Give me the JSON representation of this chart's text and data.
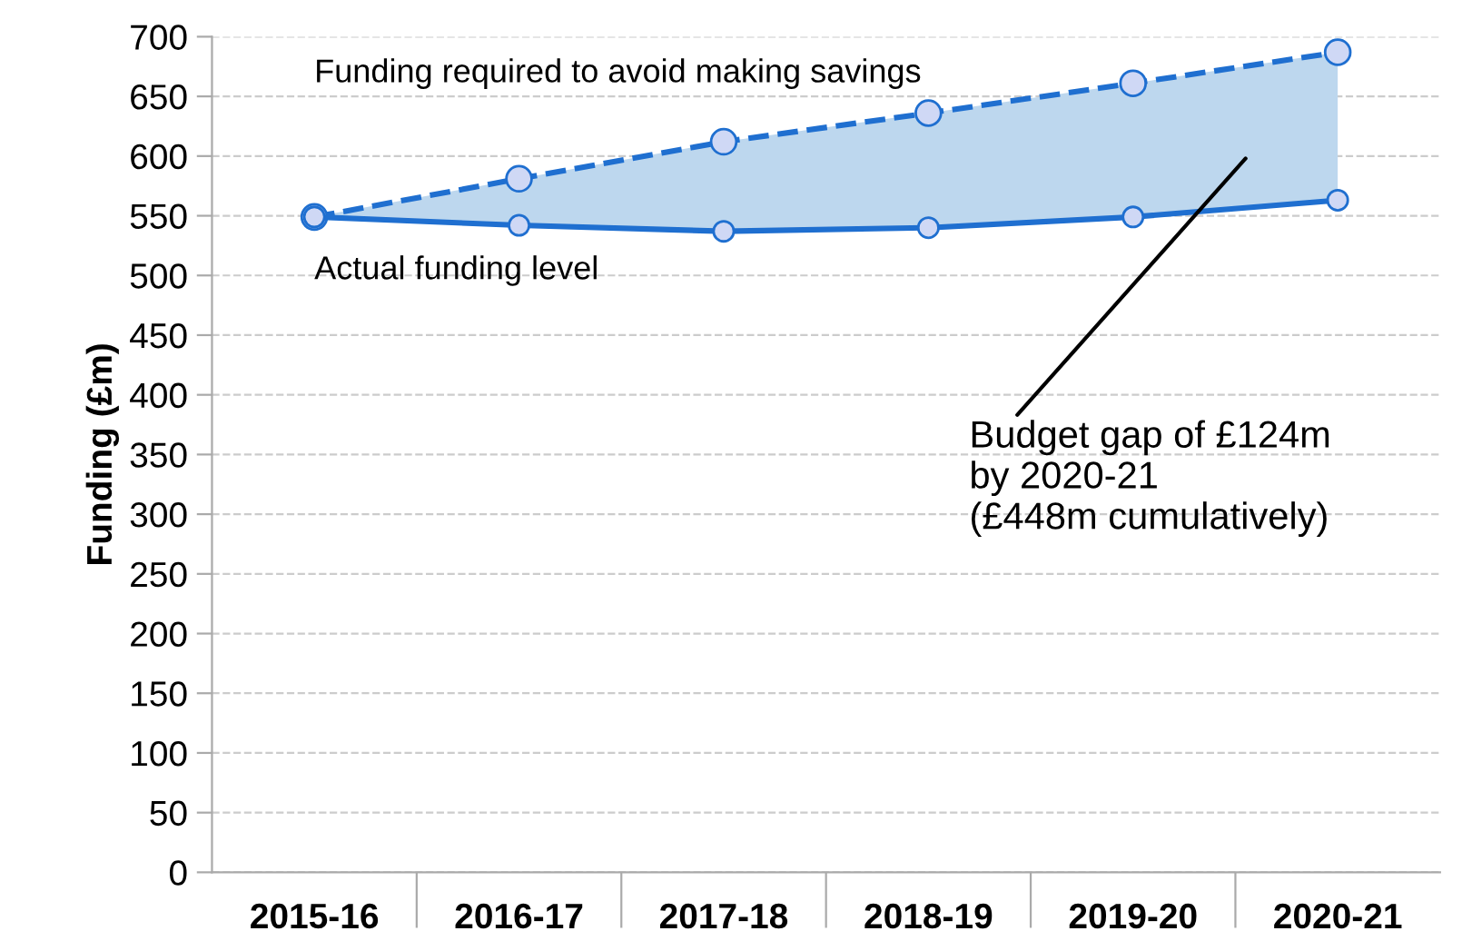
{
  "chart_data": {
    "type": "line",
    "ylabel": "Funding (£m)",
    "categories": [
      "2015-16",
      "2016-17",
      "2017-18",
      "2018-19",
      "2019-20",
      "2020-21"
    ],
    "series": [
      {
        "name": "Funding required to avoid making savings",
        "color": "#1f6fd0",
        "line_style": "dashed",
        "values": [
          549,
          581,
          612,
          636,
          661,
          687
        ],
        "lower": [
          549,
          542,
          537,
          540,
          549,
          563
        ],
        "upper": [
          549,
          581,
          612,
          636,
          661,
          687
        ]
      },
      {
        "name": "Actual funding level",
        "color": "#1f6fd0",
        "line_style": "solid",
        "values": [
          549,
          542,
          537,
          540,
          549,
          563
        ]
      }
    ],
    "ylim": [
      0,
      700
    ],
    "yticks": [
      0,
      50,
      100,
      150,
      200,
      250,
      300,
      350,
      400,
      450,
      500,
      550,
      600,
      650,
      700
    ],
    "grid": "y",
    "legend": false,
    "marker": "circle",
    "annotations": [
      "Budget gap of £124m\nby 2020-21\n(£448m cumulatively)"
    ]
  }
}
